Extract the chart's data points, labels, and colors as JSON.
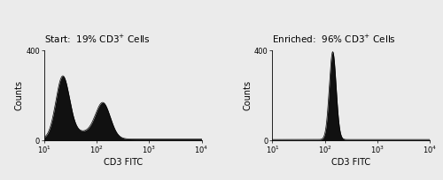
{
  "title_left": "Start:  19% CD3",
  "title_left_sup": "+",
  "title_left_suffix": " Cells",
  "title_right": "Enriched:  96% CD3",
  "title_right_sup": "+",
  "title_right_suffix": " Cells",
  "xlabel": "CD3 FITC",
  "ylabel": "Counts",
  "ylim": [
    0,
    400
  ],
  "yticks": [
    0,
    400
  ],
  "xlog_min": 1,
  "xlog_max": 4,
  "fill_color": "#111111",
  "edge_color": "#000000",
  "background_color": "#ebebeb",
  "title_fontsize": 7.5,
  "axis_label_fontsize": 7,
  "tick_fontsize": 6
}
